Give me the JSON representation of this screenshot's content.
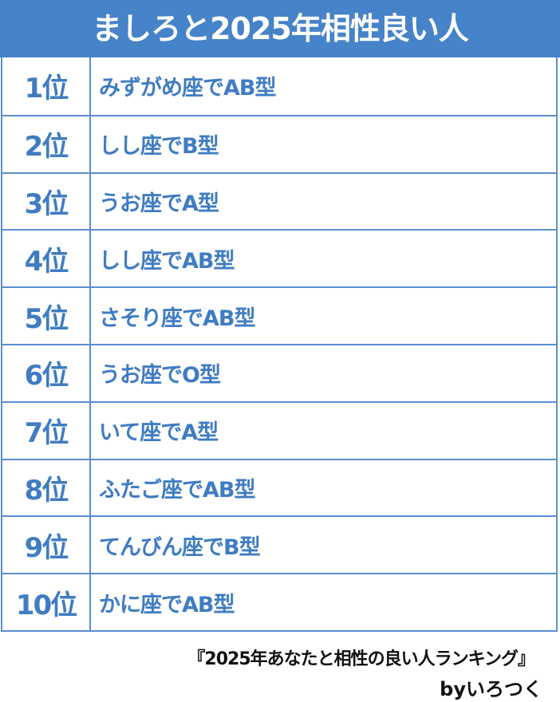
{
  "title": "ましろと2025年相性良い人",
  "colors": {
    "accent": "#4683c8",
    "text": "#3f7cc2",
    "border": "#5b8fcf"
  },
  "rankings": [
    {
      "rank": "1位",
      "text": "みずがめ座でAB型"
    },
    {
      "rank": "2位",
      "text": "しし座でB型"
    },
    {
      "rank": "3位",
      "text": "うお座でA型"
    },
    {
      "rank": "4位",
      "text": "しし座でAB型"
    },
    {
      "rank": "5位",
      "text": "さそり座でAB型"
    },
    {
      "rank": "6位",
      "text": "うお座でO型"
    },
    {
      "rank": "7位",
      "text": "いて座でA型"
    },
    {
      "rank": "8位",
      "text": "ふたご座でAB型"
    },
    {
      "rank": "9位",
      "text": "てんびん座でB型"
    },
    {
      "rank": "10位",
      "text": "かに座でAB型"
    }
  ],
  "footer": {
    "source": "『2025年あなたと相性の良い人ランキング』",
    "byline": "byいろつく"
  }
}
